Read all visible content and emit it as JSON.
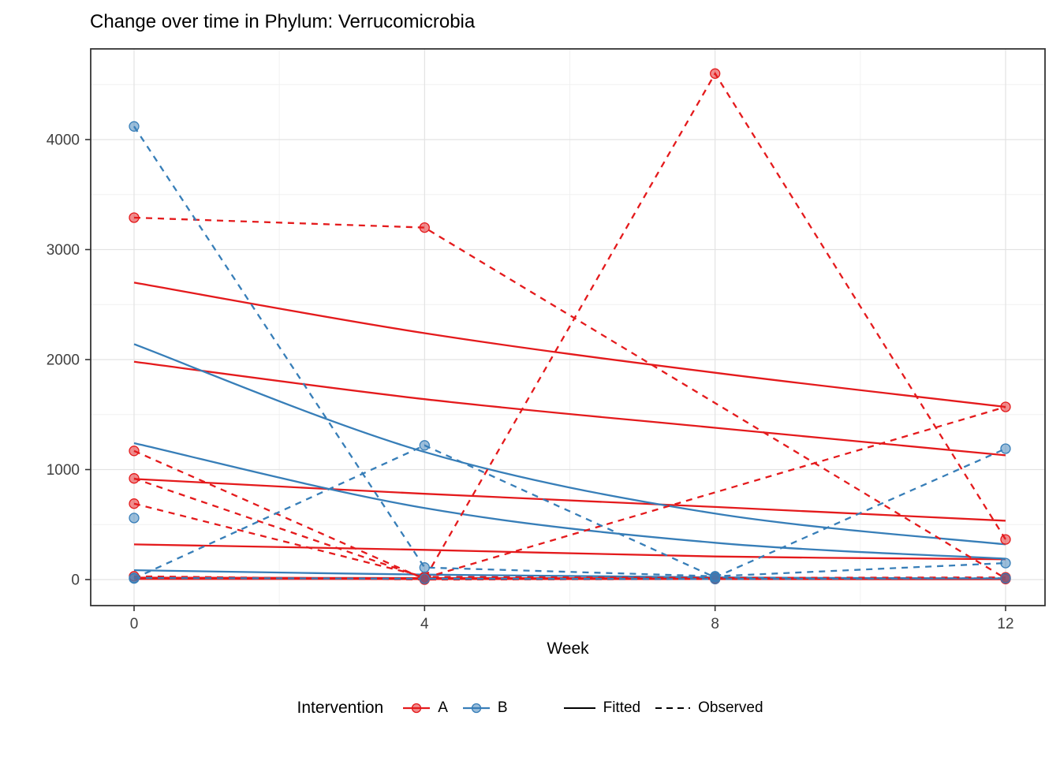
{
  "title": "Change over time in Phylum: Verrucomicrobia",
  "legend": {
    "title": "Intervention",
    "items": [
      {
        "label": "A",
        "color": "#E41A1C"
      },
      {
        "label": "B",
        "color": "#377EB8"
      }
    ],
    "linetypes": [
      {
        "label": "Fitted",
        "style": "solid"
      },
      {
        "label": "Observed",
        "style": "dashed"
      }
    ]
  },
  "chart_data": {
    "type": "line",
    "title": "Change over time in Phylum: Verrucomicrobia",
    "xlabel": "Week",
    "ylabel": "",
    "x_ticks": [
      0,
      4,
      8,
      12
    ],
    "x_minor": [
      2,
      6,
      10
    ],
    "y_ticks": [
      0,
      1000,
      2000,
      3000,
      4000
    ],
    "y_minor": [
      500,
      1500,
      2500,
      3500,
      4500
    ],
    "xlim": [
      -0.6,
      12.55
    ],
    "ylim": [
      -240,
      4830
    ],
    "grid": "major and minor, light gray on white, black panel border",
    "legend_position": "bottom",
    "series": [
      {
        "group": "A",
        "type": "fitted",
        "x": [
          0,
          4,
          8,
          12
        ],
        "y": [
          2700,
          2240,
          1880,
          1570
        ]
      },
      {
        "group": "A",
        "type": "fitted",
        "x": [
          0,
          4,
          8,
          12
        ],
        "y": [
          1980,
          1640,
          1380,
          1130
        ]
      },
      {
        "group": "A",
        "type": "fitted",
        "x": [
          0,
          4,
          8,
          12
        ],
        "y": [
          915,
          780,
          660,
          535
        ]
      },
      {
        "group": "A",
        "type": "fitted",
        "x": [
          0,
          4,
          8,
          12
        ],
        "y": [
          320,
          270,
          210,
          185
        ]
      },
      {
        "group": "A",
        "type": "fitted",
        "x": [
          0,
          4,
          8,
          12
        ],
        "y": [
          18,
          14,
          11,
          9
        ]
      },
      {
        "group": "A",
        "type": "fitted",
        "x": [
          0,
          4,
          8,
          12
        ],
        "y": [
          6,
          5,
          4,
          3
        ]
      },
      {
        "group": "B",
        "type": "fitted",
        "x": [
          0,
          4,
          8,
          12
        ],
        "y": [
          2140,
          1160,
          600,
          320
        ]
      },
      {
        "group": "B",
        "type": "fitted",
        "x": [
          0,
          4,
          8,
          12
        ],
        "y": [
          1240,
          650,
          335,
          190
        ]
      },
      {
        "group": "B",
        "type": "fitted",
        "x": [
          0,
          4,
          8,
          12
        ],
        "y": [
          85,
          45,
          20,
          10
        ]
      },
      {
        "group": "A",
        "type": "observed",
        "x": [
          0,
          4,
          12
        ],
        "y": [
          3290,
          3200,
          10
        ]
      },
      {
        "group": "A",
        "type": "observed",
        "x": [
          0,
          4,
          8,
          12
        ],
        "y": [
          1170,
          5,
          4600,
          365
        ]
      },
      {
        "group": "A",
        "type": "observed",
        "x": [
          0,
          4,
          12
        ],
        "y": [
          920,
          15,
          1570
        ]
      },
      {
        "group": "A",
        "type": "observed",
        "x": [
          0,
          4,
          8,
          12
        ],
        "y": [
          690,
          25,
          15,
          20
        ]
      },
      {
        "group": "A",
        "type": "observed",
        "x": [
          0,
          4,
          8,
          12
        ],
        "y": [
          30,
          0,
          5,
          5
        ]
      },
      {
        "group": "B",
        "type": "observed",
        "x": [
          0,
          4,
          8,
          12
        ],
        "y": [
          4120,
          110,
          30,
          150
        ]
      },
      {
        "group": "B",
        "type": "observed",
        "x": [
          0,
          4,
          8,
          12
        ],
        "y": [
          10,
          1220,
          20,
          1190
        ]
      },
      {
        "group": "B",
        "type": "observed",
        "x": [
          0,
          4,
          8,
          12
        ],
        "y": [
          15,
          8,
          5,
          12
        ]
      },
      {
        "group": "B",
        "type": "observed",
        "x": [
          0
        ],
        "y": [
          560
        ]
      }
    ]
  }
}
